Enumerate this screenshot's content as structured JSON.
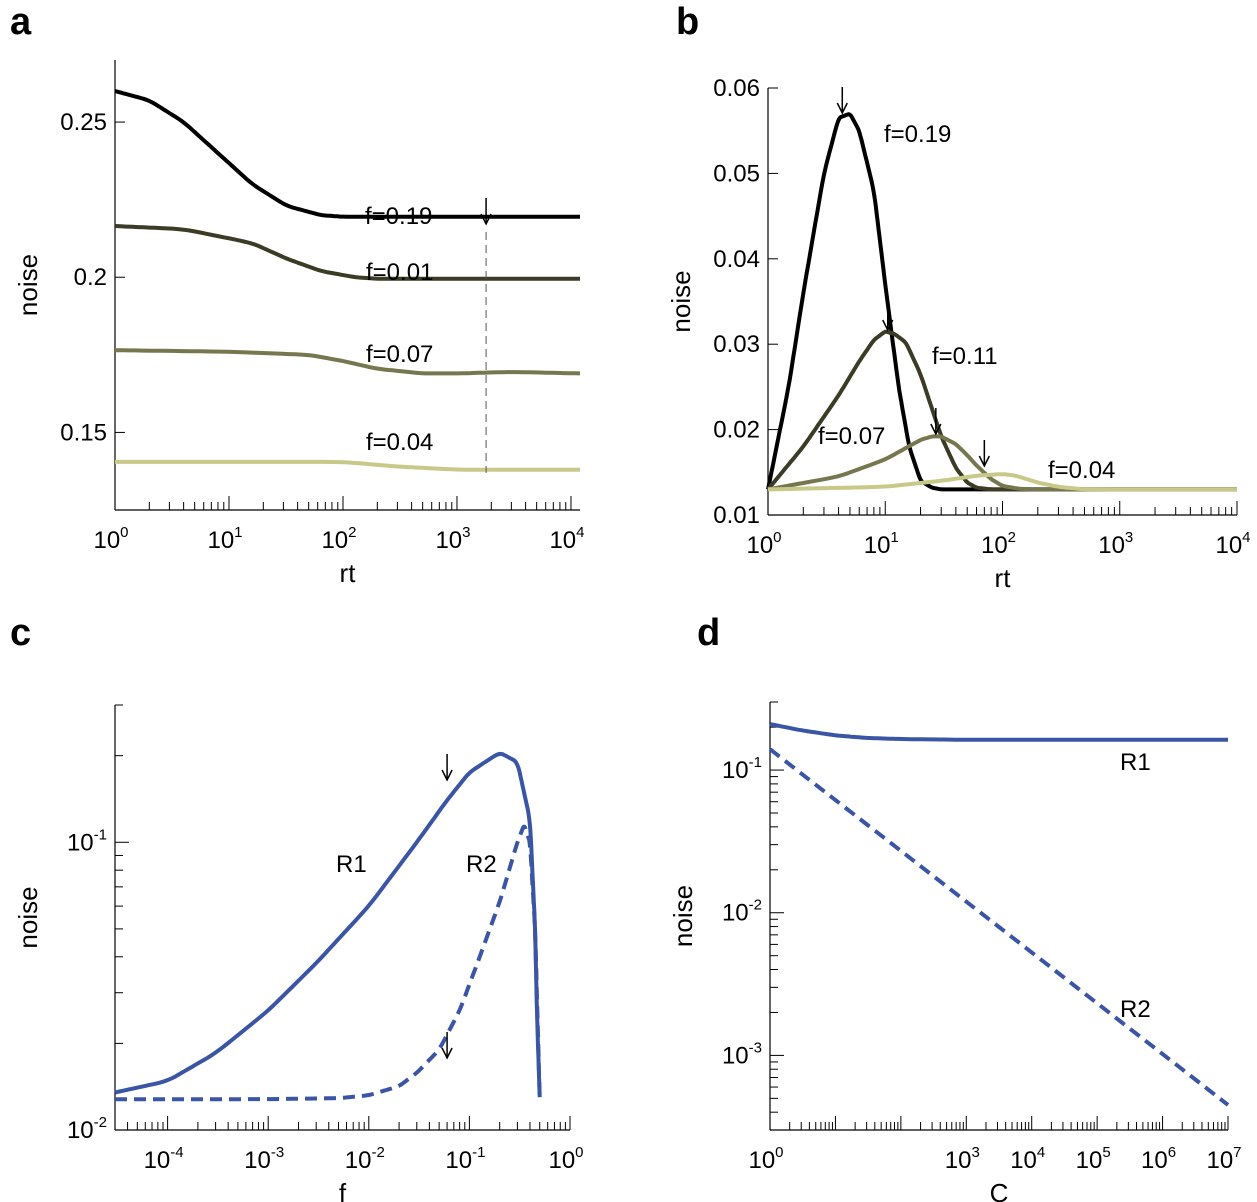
{
  "chart_data": [
    {
      "panel": "a",
      "type": "line",
      "xscale": "log",
      "xlabel": "rt",
      "ylabel": "noise",
      "xlim": [
        1,
        12000
      ],
      "ylim": [
        0.125,
        0.27
      ],
      "xticks": [
        {
          "v": 1,
          "base": "10",
          "exp": "0"
        },
        {
          "v": 10,
          "base": "10",
          "exp": "1"
        },
        {
          "v": 100,
          "base": "10",
          "exp": "2"
        },
        {
          "v": 1000,
          "base": "10",
          "exp": "3"
        },
        {
          "v": 10000,
          "base": "10",
          "exp": "4"
        }
      ],
      "yticks": [
        {
          "v": 0.15,
          "label": "0.15"
        },
        {
          "v": 0.2,
          "label": "0.2"
        },
        {
          "v": 0.25,
          "label": "0.25"
        }
      ],
      "series": [
        {
          "name": "f=0.19",
          "color": "#000000",
          "x": [
            1,
            2,
            4,
            8,
            16,
            32,
            64,
            100,
            200,
            500,
            1000,
            12000
          ],
          "y": [
            0.26,
            0.257,
            0.25,
            0.24,
            0.23,
            0.223,
            0.22,
            0.2195,
            0.2195,
            0.2195,
            0.2195,
            0.2195
          ]
        },
        {
          "name": "f=0.01",
          "color": "#3b3b26",
          "x": [
            1,
            4,
            16,
            32,
            64,
            128,
            200,
            500,
            1000,
            12000
          ],
          "y": [
            0.2165,
            0.2155,
            0.211,
            0.206,
            0.202,
            0.2,
            0.1995,
            0.1995,
            0.1995,
            0.1995
          ]
        },
        {
          "name": "f=0.07",
          "color": "#76764f",
          "x": [
            1,
            10,
            50,
            100,
            200,
            500,
            1000,
            3000,
            12000
          ],
          "y": [
            0.1765,
            0.176,
            0.175,
            0.173,
            0.1705,
            0.169,
            0.169,
            0.1695,
            0.169
          ]
        },
        {
          "name": "f=0.04",
          "color": "#c8c888",
          "x": [
            1,
            10,
            100,
            300,
            1000,
            3000,
            12000
          ],
          "y": [
            0.1405,
            0.1405,
            0.1405,
            0.139,
            0.138,
            0.138,
            0.138
          ]
        }
      ],
      "labels": [
        "f=0.19",
        "f=0.01",
        "f=0.07",
        "f=0.04"
      ],
      "annotations": {
        "arrow_x": 1800,
        "dashed_line_x": 1800
      }
    },
    {
      "panel": "b",
      "type": "line",
      "xscale": "log",
      "xlabel": "rt",
      "ylabel": "noise",
      "xlim": [
        1,
        10000
      ],
      "ylim": [
        0.01,
        0.06
      ],
      "xticks": [
        {
          "v": 1,
          "base": "10",
          "exp": "0"
        },
        {
          "v": 10,
          "base": "10",
          "exp": "1"
        },
        {
          "v": 100,
          "base": "10",
          "exp": "2"
        },
        {
          "v": 1000,
          "base": "10",
          "exp": "3"
        },
        {
          "v": 10000,
          "base": "10",
          "exp": "4"
        }
      ],
      "yticks": [
        {
          "v": 0.01,
          "label": "0.01"
        },
        {
          "v": 0.02,
          "label": "0.02"
        },
        {
          "v": 0.03,
          "label": "0.03"
        },
        {
          "v": 0.04,
          "label": "0.04"
        },
        {
          "v": 0.05,
          "label": "0.05"
        },
        {
          "v": 0.06,
          "label": "0.06"
        }
      ],
      "series": [
        {
          "name": "f=0.19",
          "color": "#000000",
          "x": [
            1,
            1.5,
            2,
            3,
            4,
            5,
            6,
            8,
            10,
            13,
            16,
            20,
            25,
            30,
            40,
            100,
            10000
          ],
          "y": [
            0.013,
            0.025,
            0.036,
            0.05,
            0.0565,
            0.057,
            0.055,
            0.048,
            0.037,
            0.025,
            0.018,
            0.014,
            0.0132,
            0.013,
            0.013,
            0.013,
            0.013
          ]
        },
        {
          "name": "f=0.11",
          "color": "#3b3b26",
          "x": [
            1,
            2,
            4,
            6,
            8,
            10,
            12,
            15,
            20,
            30,
            40,
            50,
            60,
            80,
            100,
            10000
          ],
          "y": [
            0.013,
            0.018,
            0.024,
            0.028,
            0.0305,
            0.0315,
            0.0312,
            0.0302,
            0.0265,
            0.0192,
            0.0155,
            0.0138,
            0.0132,
            0.013,
            0.013,
            0.013
          ]
        },
        {
          "name": "f=0.07",
          "color": "#76764f",
          "x": [
            1,
            4,
            10,
            20,
            25,
            30,
            40,
            50,
            60,
            80,
            100,
            150,
            10000
          ],
          "y": [
            0.013,
            0.0145,
            0.0165,
            0.0188,
            0.0192,
            0.0192,
            0.0183,
            0.017,
            0.0158,
            0.0142,
            0.0134,
            0.013,
            0.013
          ]
        },
        {
          "name": "f=0.04",
          "color": "#c8c888",
          "x": [
            1,
            10,
            30,
            60,
            100,
            130,
            200,
            300,
            500,
            10000
          ],
          "y": [
            0.013,
            0.0133,
            0.014,
            0.0146,
            0.0148,
            0.0146,
            0.0138,
            0.0133,
            0.013,
            0.013
          ]
        }
      ],
      "labels": [
        "f=0.19",
        "f=0.11",
        "f=0.07",
        "f=0.04"
      ],
      "annotations": {
        "arrow_x": [
          4.3,
          10.5,
          27,
          70
        ]
      }
    },
    {
      "panel": "c",
      "type": "line",
      "xscale": "log",
      "yscale": "log",
      "xlabel": "f",
      "ylabel": "noise",
      "xlim": [
        3e-05,
        1
      ],
      "ylim": [
        0.01,
        0.3
      ],
      "xticks": [
        {
          "v": 0.0001,
          "base": "10",
          "exp": "-4"
        },
        {
          "v": 0.001,
          "base": "10",
          "exp": "-3"
        },
        {
          "v": 0.01,
          "base": "10",
          "exp": "-2"
        },
        {
          "v": 0.1,
          "base": "10",
          "exp": "-1"
        },
        {
          "v": 1,
          "base": "10",
          "exp": "0"
        }
      ],
      "yticks": [
        {
          "v": 0.01,
          "base": "10",
          "exp": "-2"
        },
        {
          "v": 0.1,
          "base": "10",
          "exp": "-1"
        }
      ],
      "series": [
        {
          "name": "R1",
          "color": "#3a55a4",
          "dash": false,
          "x": [
            3e-05,
            0.0001,
            0.0003,
            0.001,
            0.003,
            0.01,
            0.03,
            0.06,
            0.1,
            0.2,
            0.3,
            0.4,
            0.45,
            0.47,
            0.5
          ],
          "y": [
            0.0135,
            0.0148,
            0.0185,
            0.026,
            0.038,
            0.06,
            0.1,
            0.14,
            0.175,
            0.205,
            0.19,
            0.12,
            0.05,
            0.025,
            0.013
          ]
        },
        {
          "name": "R2",
          "color": "#3a55a4",
          "dash": true,
          "x": [
            3e-05,
            0.001,
            0.005,
            0.01,
            0.02,
            0.03,
            0.05,
            0.08,
            0.12,
            0.2,
            0.3,
            0.35,
            0.4,
            0.45,
            0.5
          ],
          "y": [
            0.0128,
            0.0128,
            0.0129,
            0.0132,
            0.0142,
            0.0158,
            0.019,
            0.026,
            0.038,
            0.062,
            0.1,
            0.115,
            0.1,
            0.05,
            0.013
          ]
        }
      ],
      "labels": [
        "R1",
        "R2"
      ],
      "annotations": {
        "arrow_x": [
          0.06,
          0.06
        ]
      }
    },
    {
      "panel": "d",
      "type": "line",
      "xscale": "log",
      "yscale": "log",
      "xlabel": "C",
      "ylabel": "noise",
      "xlim": [
        1,
        10000000
      ],
      "ylim": [
        0.0003,
        0.3
      ],
      "xticks": [
        {
          "v": 1,
          "base": "10",
          "exp": "0"
        },
        {
          "v": 1000,
          "base": "10",
          "exp": "3"
        },
        {
          "v": 10000,
          "base": "10",
          "exp": "4"
        },
        {
          "v": 100000,
          "base": "10",
          "exp": "5"
        },
        {
          "v": 1000000,
          "base": "10",
          "exp": "6"
        },
        {
          "v": 10000000,
          "base": "10",
          "exp": "7"
        }
      ],
      "yticks": [
        {
          "v": 0.001,
          "base": "10",
          "exp": "-3"
        },
        {
          "v": 0.01,
          "base": "10",
          "exp": "-2"
        },
        {
          "v": 0.1,
          "base": "10",
          "exp": "-1"
        }
      ],
      "series": [
        {
          "name": "R1",
          "color": "#3a55a4",
          "dash": false,
          "x": [
            1,
            3,
            10,
            30,
            100,
            1000,
            10000,
            10000000
          ],
          "y": [
            0.21,
            0.19,
            0.175,
            0.168,
            0.165,
            0.163,
            0.163,
            0.163
          ]
        },
        {
          "name": "R2",
          "color": "#3a55a4",
          "dash": true,
          "x": [
            1,
            10000000
          ],
          "y": [
            0.14,
            0.00045
          ]
        }
      ],
      "labels": [
        "R1",
        "R2"
      ]
    }
  ],
  "panel_letters": [
    "a",
    "b",
    "c",
    "d"
  ]
}
